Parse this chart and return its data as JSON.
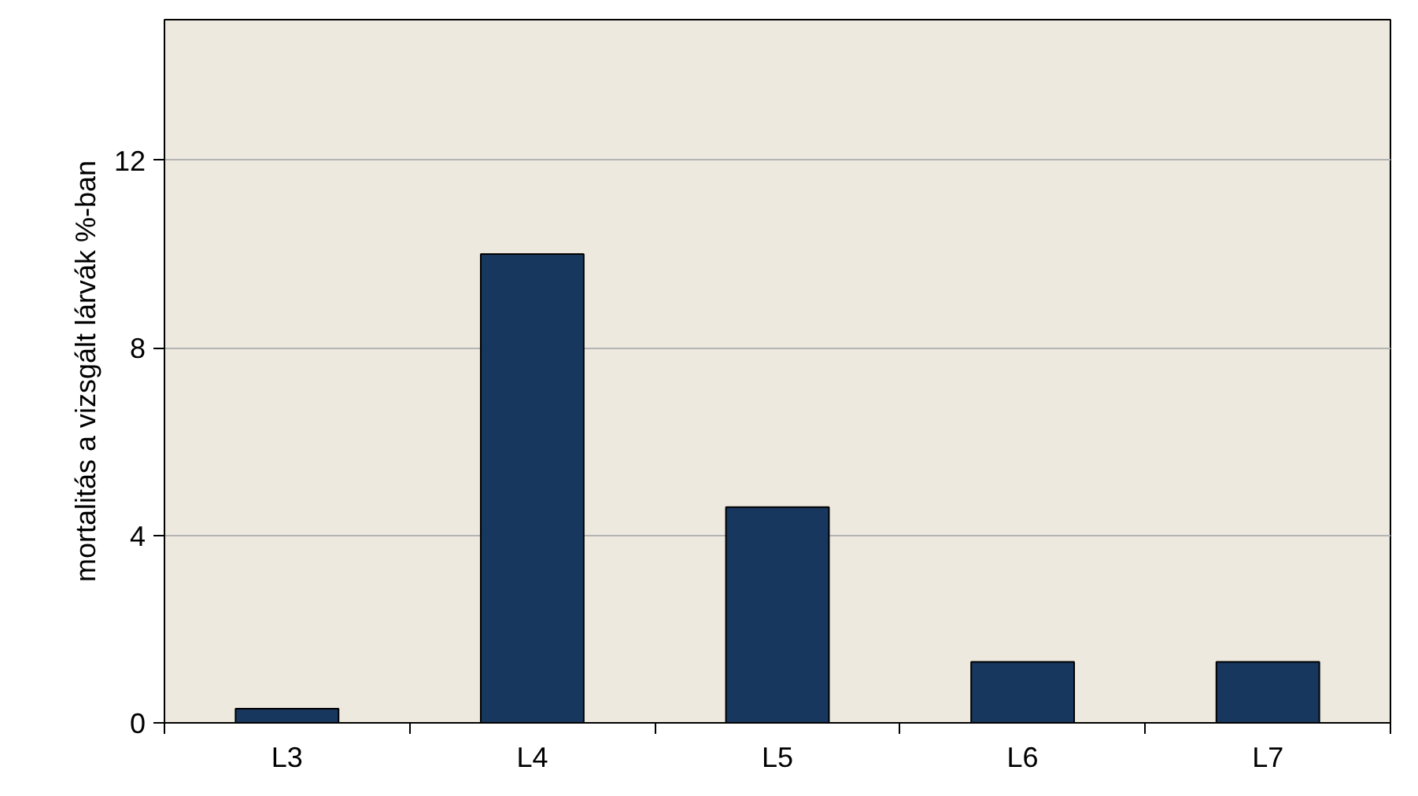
{
  "chart_data": {
    "type": "bar",
    "ylabel": "mortalitás a vizsgált lárvák %-ban",
    "categories": [
      "L3",
      "L4",
      "L5",
      "L6",
      "L7"
    ],
    "values": [
      0.3,
      10.0,
      4.6,
      1.3,
      1.3
    ],
    "color": "#17375e",
    "ylim": [
      0,
      15
    ],
    "yticks": [
      0,
      4,
      8,
      12
    ],
    "grid": "y"
  }
}
